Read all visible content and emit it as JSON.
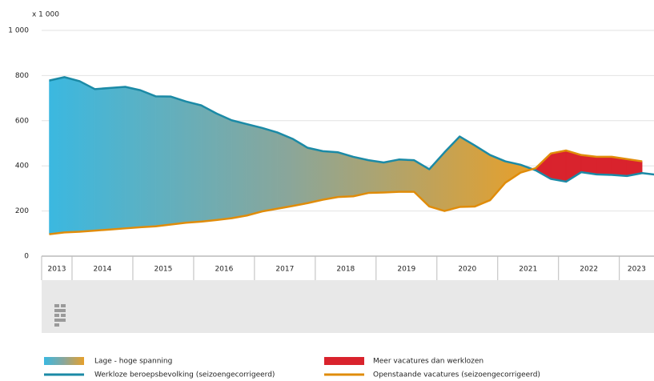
{
  "chart_data": {
    "type": "area",
    "y_unit_label": "x 1 000",
    "x": [
      2013.625,
      2013.875,
      2014.125,
      2014.375,
      2014.625,
      2014.875,
      2015.125,
      2015.375,
      2015.625,
      2015.875,
      2016.125,
      2016.375,
      2016.625,
      2016.875,
      2017.125,
      2017.375,
      2017.625,
      2017.875,
      2018.125,
      2018.375,
      2018.625,
      2018.875,
      2019.125,
      2019.375,
      2019.625,
      2019.875,
      2020.125,
      2020.375,
      2020.625,
      2020.875,
      2021.125,
      2021.375,
      2021.625,
      2021.875,
      2022.125,
      2022.375,
      2022.625,
      2022.875,
      2023.125,
      2023.375,
      2023.625
    ],
    "series": [
      {
        "name": "Werkloze beroepsbevolking (seizoengecorrigeerd)",
        "color": "#1b8aa6",
        "values": [
          778,
          793,
          775,
          740,
          745,
          750,
          735,
          708,
          707,
          685,
          668,
          632,
          602,
          585,
          568,
          548,
          520,
          480,
          465,
          460,
          440,
          425,
          415,
          428,
          425,
          385,
          460,
          530,
          490,
          448,
          420,
          405,
          380,
          342,
          330,
          372,
          362,
          360,
          355,
          368,
          360
        ]
      },
      {
        "name": "Openstaande vacatures (seizoengecorrigeerd)",
        "color": "#e08c0a",
        "values": [
          97,
          105,
          108,
          113,
          118,
          123,
          128,
          132,
          140,
          148,
          153,
          160,
          168,
          180,
          198,
          210,
          222,
          235,
          250,
          262,
          265,
          280,
          282,
          285,
          285,
          220,
          200,
          218,
          220,
          248,
          325,
          370,
          390,
          455,
          468,
          448,
          440,
          440,
          430,
          420,
          null
        ]
      }
    ],
    "area_legend": [
      {
        "name": "Lage - hoge spanning",
        "colors": [
          "#3bb8e0",
          "#8aa69a",
          "#e6a02c"
        ]
      },
      {
        "name": "Meer vacatures dan werklozen",
        "color": "#d9232d"
      }
    ],
    "xlim": [
      2013.5,
      2023.57
    ],
    "xticks": [
      2014,
      2015,
      2016,
      2017,
      2018,
      2019,
      2020,
      2021,
      2022,
      2023
    ],
    "year_labels": [
      2013,
      2014,
      2015,
      2016,
      2017,
      2018,
      2019,
      2020,
      2021,
      2022,
      2023
    ],
    "ylim": [
      0,
      1000
    ],
    "yticks": [
      0,
      200,
      400,
      600,
      800,
      {
        "value": 1000,
        "label": "1 000"
      }
    ],
    "grid": true
  }
}
